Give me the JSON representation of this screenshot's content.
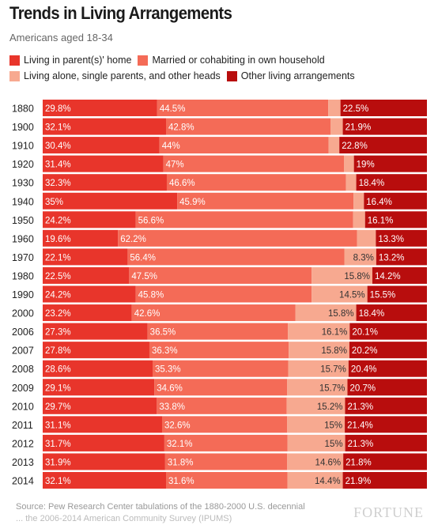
{
  "title": "Trends in Living Arrangements",
  "subtitle": "Americans aged 18-34",
  "source": {
    "line1": "Source: Pew Research Center tabulations of the 1880-2000 U.S. decennial",
    "line2": "... the 2006-2014 American Community Survey (IPUMS)"
  },
  "brand": "FORTUNE",
  "colors": {
    "parents": "#e8352b",
    "married": "#f46b57",
    "alone": "#f7a990",
    "other": "#b80d0d"
  },
  "legend": [
    {
      "label": "Living in parent(s)' home",
      "color": "#e8352b"
    },
    {
      "label": "Married or cohabiting in own household",
      "color": "#f46b57"
    },
    {
      "label": "Living alone, single parents, and other heads",
      "color": "#f7a990"
    },
    {
      "label": "Other living arrangements",
      "color": "#b80d0d"
    }
  ],
  "chart_data": {
    "type": "bar",
    "stacked": true,
    "orientation": "horizontal",
    "normalized": true,
    "categories": [
      "1880",
      "1900",
      "1910",
      "1920",
      "1930",
      "1940",
      "1950",
      "1960",
      "1970",
      "1980",
      "1990",
      "2000",
      "2006",
      "2007",
      "2008",
      "2009",
      "2010",
      "2011",
      "2012",
      "2013",
      "2014"
    ],
    "series": [
      {
        "name": "Living in parent(s)' home",
        "values": [
          29.8,
          32.1,
          30.4,
          31.4,
          32.3,
          35,
          24.2,
          19.6,
          22.1,
          22.5,
          24.2,
          23.2,
          27.3,
          27.8,
          28.6,
          29.1,
          29.7,
          31.1,
          31.7,
          31.9,
          32.1
        ],
        "labels": [
          "29.8%",
          "32.1%",
          "30.4%",
          "31.4%",
          "32.3%",
          "35%",
          "24.2%",
          "19.6%",
          "22.1%",
          "22.5%",
          "24.2%",
          "23.2%",
          "27.3%",
          "27.8%",
          "28.6%",
          "29.1%",
          "29.7%",
          "31.1%",
          "31.7%",
          "31.9%",
          "32.1%"
        ]
      },
      {
        "name": "Married or cohabiting in own household",
        "values": [
          44.5,
          42.8,
          44,
          47,
          46.6,
          45.9,
          56.6,
          62.2,
          56.4,
          47.5,
          45.8,
          42.6,
          36.5,
          36.3,
          35.3,
          34.6,
          33.8,
          32.6,
          32.1,
          31.8,
          31.6
        ],
        "labels": [
          "44.5%",
          "42.8%",
          "44%",
          "47%",
          "46.6%",
          "45.9%",
          "56.6%",
          "62.2%",
          "56.4%",
          "47.5%",
          "45.8%",
          "42.6%",
          "36.5%",
          "36.3%",
          "35.3%",
          "34.6%",
          "33.8%",
          "32.6%",
          "32.1%",
          "31.8%",
          "31.6%"
        ]
      },
      {
        "name": "Living alone, single parents, and other heads",
        "values": [
          3.2,
          3.2,
          2.8,
          2.6,
          2.7,
          2.7,
          3.1,
          4.9,
          8.3,
          15.8,
          14.5,
          15.8,
          16.1,
          15.8,
          15.7,
          15.7,
          15.2,
          15,
          15,
          14.6,
          14.4
        ],
        "labels": [
          "",
          "",
          "",
          "",
          "",
          "",
          "",
          "",
          "8.3%",
          "15.8%",
          "14.5%",
          "15.8%",
          "16.1%",
          "15.8%",
          "15.7%",
          "15.7%",
          "15.2%",
          "15%",
          "15%",
          "14.6%",
          "14.4%"
        ]
      },
      {
        "name": "Other living arrangements",
        "values": [
          22.5,
          21.9,
          22.8,
          19,
          18.4,
          16.4,
          16.1,
          13.3,
          13.2,
          14.2,
          15.5,
          18.4,
          20.1,
          20.2,
          20.4,
          20.7,
          21.3,
          21.4,
          21.3,
          21.8,
          21.9
        ],
        "labels": [
          "22.5%",
          "21.9%",
          "22.8%",
          "19%",
          "18.4%",
          "16.4%",
          "16.1%",
          "13.3%",
          "13.2%",
          "14.2%",
          "15.5%",
          "18.4%",
          "20.1%",
          "20.2%",
          "20.4%",
          "20.7%",
          "21.3%",
          "21.4%",
          "21.3%",
          "21.8%",
          "21.9%"
        ]
      }
    ]
  }
}
